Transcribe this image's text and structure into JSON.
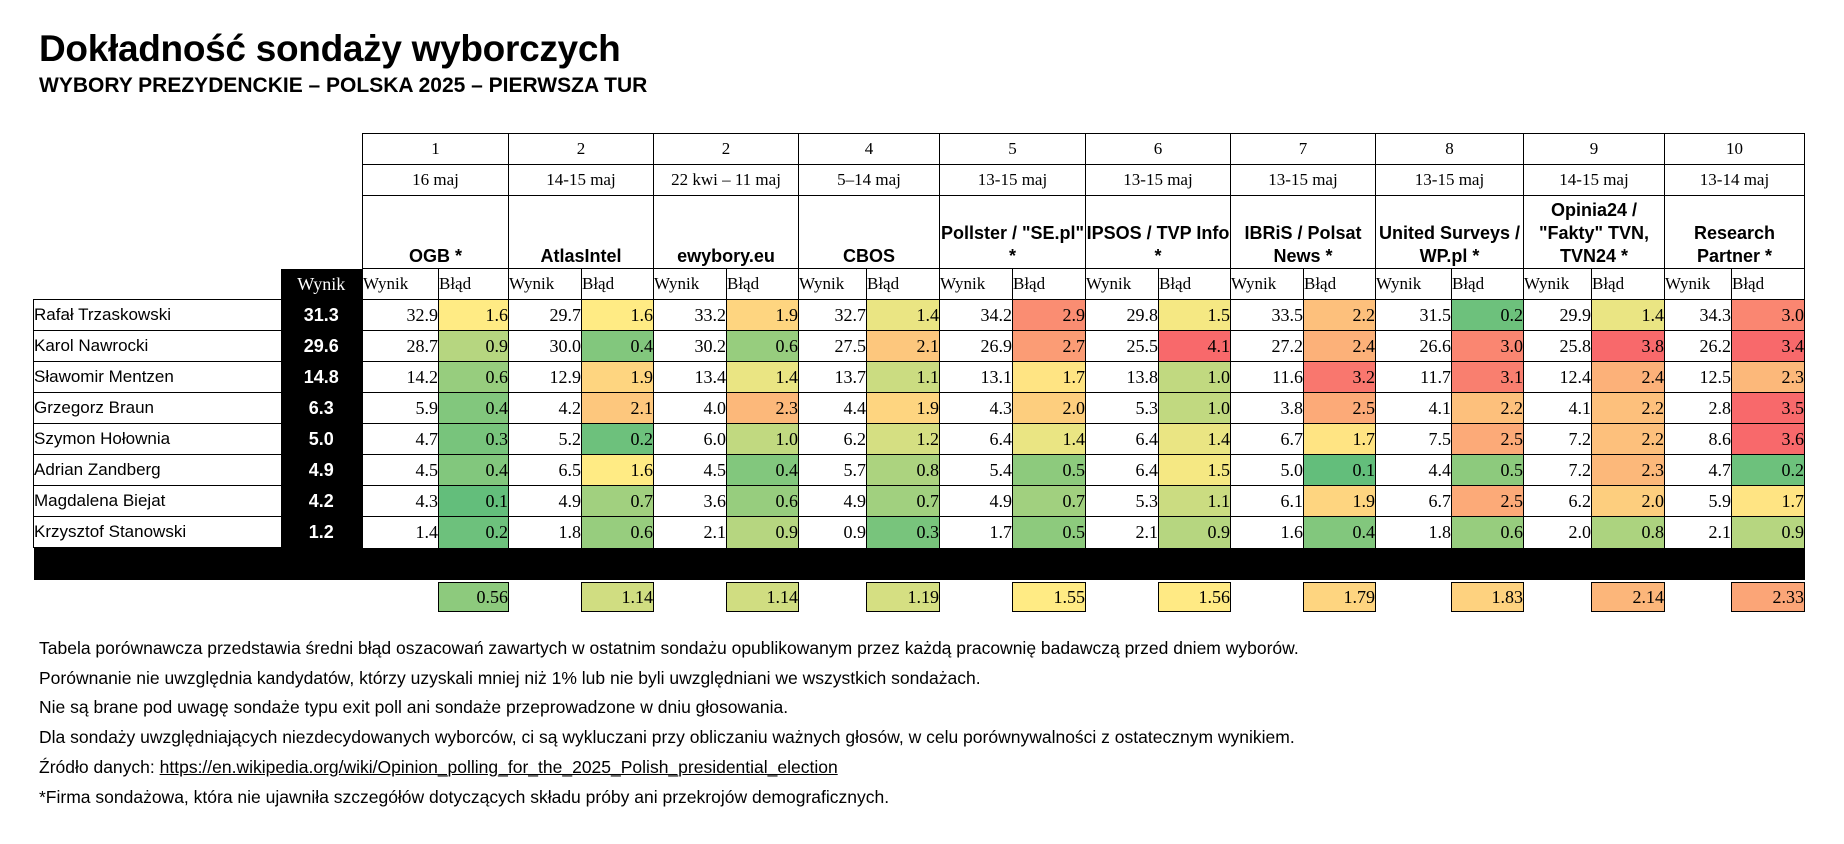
{
  "title": "Dokładność sondaży wyborczych",
  "subtitle": "WYBORY PREZYDENCKIE – POLSKA 2025 – PIERWSZA TUR",
  "colors": {
    "scale_low": "#63be7b",
    "scale_mid": "#ffeb84",
    "scale_high": "#f8696b",
    "header_bg": "#000000",
    "header_text": "#ffffff"
  },
  "chart_data": {
    "type": "table",
    "result_header": "Wynik",
    "col_wynik_label": "Wynik",
    "col_error_label": "Błąd",
    "candidates": [
      {
        "name": "Rafał Trzaskowski",
        "result": "31.3"
      },
      {
        "name": "Karol Nawrocki",
        "result": "29.6"
      },
      {
        "name": "Sławomir Mentzen",
        "result": "14.8"
      },
      {
        "name": "Grzegorz Braun",
        "result": "6.3"
      },
      {
        "name": "Szymon Hołownia",
        "result": "5.0"
      },
      {
        "name": "Adrian Zandberg",
        "result": "4.9"
      },
      {
        "name": "Magdalena Biejat",
        "result": "4.2"
      },
      {
        "name": "Krzysztof Stanowski",
        "result": "1.2"
      }
    ],
    "pollsters": [
      {
        "rank": "1",
        "date": "16 maj",
        "name": "OGB *",
        "results": [
          "32.9",
          "28.7",
          "14.2",
          "5.9",
          "4.7",
          "4.5",
          "4.3",
          "1.4"
        ],
        "errors": [
          "1.6",
          "0.9",
          "0.6",
          "0.4",
          "0.3",
          "0.4",
          "0.1",
          "0.2"
        ],
        "avg_error": "0.56"
      },
      {
        "rank": "2",
        "date": "14-15 maj",
        "name": "AtlasIntel",
        "results": [
          "29.7",
          "30.0",
          "12.9",
          "4.2",
          "5.2",
          "6.5",
          "4.9",
          "1.8"
        ],
        "errors": [
          "1.6",
          "0.4",
          "1.9",
          "2.1",
          "0.2",
          "1.6",
          "0.7",
          "0.6"
        ],
        "avg_error": "1.14"
      },
      {
        "rank": "2",
        "date": "22 kwi – 11 maj",
        "name": "ewybory.eu",
        "results": [
          "33.2",
          "30.2",
          "13.4",
          "4.0",
          "6.0",
          "4.5",
          "3.6",
          "2.1"
        ],
        "errors": [
          "1.9",
          "0.6",
          "1.4",
          "2.3",
          "1.0",
          "0.4",
          "0.6",
          "0.9"
        ],
        "avg_error": "1.14"
      },
      {
        "rank": "4",
        "date": "5–14 maj",
        "name": "CBOS",
        "results": [
          "32.7",
          "27.5",
          "13.7",
          "4.4",
          "6.2",
          "5.7",
          "4.9",
          "0.9"
        ],
        "errors": [
          "1.4",
          "2.1",
          "1.1",
          "1.9",
          "1.2",
          "0.8",
          "0.7",
          "0.3"
        ],
        "avg_error": "1.19"
      },
      {
        "rank": "5",
        "date": "13-15 maj",
        "name": "Pollster / \"SE.pl\" *",
        "results": [
          "34.2",
          "26.9",
          "13.1",
          "4.3",
          "6.4",
          "5.4",
          "4.9",
          "1.7"
        ],
        "errors": [
          "2.9",
          "2.7",
          "1.7",
          "2.0",
          "1.4",
          "0.5",
          "0.7",
          "0.5"
        ],
        "avg_error": "1.55"
      },
      {
        "rank": "6",
        "date": "13-15 maj",
        "name": "IPSOS / TVP Info *",
        "results": [
          "29.8",
          "25.5",
          "13.8",
          "5.3",
          "6.4",
          "6.4",
          "5.3",
          "2.1"
        ],
        "errors": [
          "1.5",
          "4.1",
          "1.0",
          "1.0",
          "1.4",
          "1.5",
          "1.1",
          "0.9"
        ],
        "avg_error": "1.56"
      },
      {
        "rank": "7",
        "date": "13-15 maj",
        "name": "IBRiS / Polsat News *",
        "results": [
          "33.5",
          "27.2",
          "11.6",
          "3.8",
          "6.7",
          "5.0",
          "6.1",
          "1.6"
        ],
        "errors": [
          "2.2",
          "2.4",
          "3.2",
          "2.5",
          "1.7",
          "0.1",
          "1.9",
          "0.4"
        ],
        "avg_error": "1.79"
      },
      {
        "rank": "8",
        "date": "13-15 maj",
        "name": "United Surveys / WP.pl *",
        "results": [
          "31.5",
          "26.6",
          "11.7",
          "4.1",
          "7.5",
          "4.4",
          "6.7",
          "1.8"
        ],
        "errors": [
          "0.2",
          "3.0",
          "3.1",
          "2.2",
          "2.5",
          "0.5",
          "2.5",
          "0.6"
        ],
        "avg_error": "1.83"
      },
      {
        "rank": "9",
        "date": "14-15 maj",
        "name": "Opinia24 / \"Fakty\" TVN, TVN24 *",
        "results": [
          "29.9",
          "25.8",
          "12.4",
          "4.1",
          "7.2",
          "7.2",
          "6.2",
          "2.0"
        ],
        "errors": [
          "1.4",
          "3.8",
          "2.4",
          "2.2",
          "2.2",
          "2.3",
          "2.0",
          "0.8"
        ],
        "avg_error": "2.14"
      },
      {
        "rank": "10",
        "date": "13-14 maj",
        "name": "Research Partner *",
        "results": [
          "34.3",
          "26.2",
          "12.5",
          "2.8",
          "8.6",
          "4.7",
          "5.9",
          "2.1"
        ],
        "errors": [
          "3.0",
          "3.4",
          "2.3",
          "3.5",
          "3.6",
          "0.2",
          "1.7",
          "0.9"
        ],
        "avg_error": "2.33"
      }
    ]
  },
  "notes": {
    "line1": "Tabela porównawcza przedstawia średni błąd oszacowań zawartych w ostatnim sondażu opublikowanym przez każdą pracownię badawczą przed dniem wyborów.",
    "line2": "Porównanie nie uwzględnia kandydatów, którzy uzyskali mniej niż 1% lub nie byli uwzględniani we wszystkich sondażach.",
    "line3": "Nie są brane pod uwagę sondaże typu exit poll ani sondaże przeprowadzone w dniu głosowania.",
    "line4": "Dla sondaży uwzględniających niezdecydowanych wyborców, ci są wykluczani przy obliczaniu ważnych głosów, w celu porównywalności z ostatecznym wynikiem.",
    "source_label": "Źródło danych: ",
    "source_link": "https://en.wikipedia.org/wiki/Opinion_polling_for_the_2025_Polish_presidential_election",
    "footnote": "*Firma sondażowa, która nie ujawniła szczegółów dotyczących składu próby ani przekrojów demograficznych."
  }
}
